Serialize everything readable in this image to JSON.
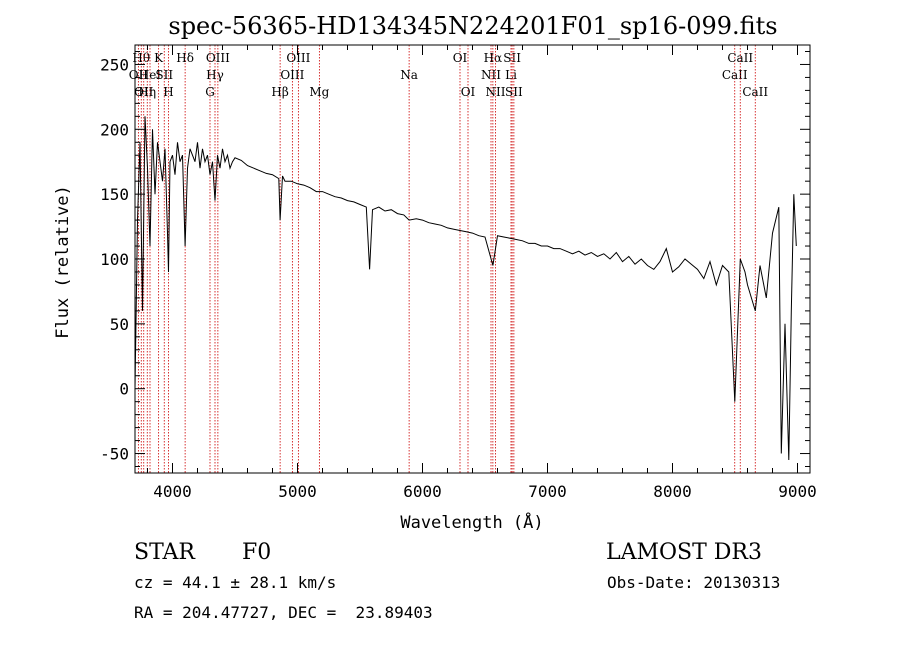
{
  "chart_data": {
    "type": "line",
    "title": "spec-56365-HD134345N224201F01_sp16-099.fits",
    "xlabel": "Wavelength (Å)",
    "ylabel": "Flux (relative)",
    "xlim": [
      3700,
      9100
    ],
    "ylim": [
      -65,
      265
    ],
    "xticks": [
      4000,
      5000,
      6000,
      7000,
      8000,
      9000
    ],
    "yticks": [
      -50,
      0,
      50,
      100,
      150,
      200,
      250
    ],
    "grid": false,
    "series": [
      {
        "name": "spectrum",
        "x": [
          3700,
          3720,
          3740,
          3760,
          3780,
          3800,
          3820,
          3840,
          3860,
          3880,
          3900,
          3920,
          3940,
          3960,
          3968,
          3980,
          4000,
          4020,
          4040,
          4060,
          4080,
          4101,
          4120,
          4140,
          4160,
          4180,
          4200,
          4220,
          4240,
          4260,
          4280,
          4300,
          4320,
          4340,
          4360,
          4380,
          4400,
          4420,
          4440,
          4460,
          4480,
          4500,
          4550,
          4600,
          4650,
          4700,
          4750,
          4800,
          4850,
          4861,
          4880,
          4900,
          4950,
          5000,
          5050,
          5100,
          5150,
          5200,
          5250,
          5300,
          5350,
          5400,
          5450,
          5500,
          5550,
          5577,
          5600,
          5650,
          5700,
          5750,
          5800,
          5850,
          5893,
          5950,
          6000,
          6050,
          6100,
          6150,
          6200,
          6250,
          6300,
          6350,
          6400,
          6450,
          6500,
          6563,
          6600,
          6650,
          6700,
          6750,
          6800,
          6850,
          6900,
          6950,
          7000,
          7050,
          7100,
          7150,
          7200,
          7250,
          7300,
          7350,
          7400,
          7450,
          7500,
          7550,
          7600,
          7650,
          7700,
          7750,
          7800,
          7850,
          7900,
          7950,
          8000,
          8050,
          8100,
          8150,
          8200,
          8250,
          8300,
          8350,
          8400,
          8450,
          8498,
          8542,
          8580,
          8600,
          8662,
          8700,
          8750,
          8800,
          8850,
          8870,
          8900,
          8930,
          8950,
          8970,
          8990
        ],
        "values": [
          0,
          130,
          190,
          60,
          210,
          170,
          110,
          200,
          150,
          190,
          175,
          160,
          185,
          120,
          90,
          175,
          180,
          165,
          190,
          175,
          180,
          110,
          170,
          185,
          180,
          175,
          190,
          170,
          185,
          175,
          180,
          165,
          175,
          145,
          180,
          170,
          185,
          175,
          180,
          170,
          175,
          178,
          176,
          172,
          170,
          168,
          166,
          165,
          162,
          130,
          164,
          160,
          160,
          158,
          157,
          155,
          152,
          152,
          150,
          148,
          147,
          145,
          144,
          142,
          140,
          92,
          138,
          140,
          137,
          138,
          135,
          134,
          130,
          131,
          130,
          128,
          127,
          126,
          124,
          123,
          122,
          121,
          120,
          118,
          117,
          95,
          118,
          117,
          116,
          115,
          114,
          112,
          112,
          110,
          110,
          108,
          108,
          106,
          104,
          106,
          103,
          105,
          102,
          104,
          100,
          105,
          98,
          102,
          96,
          100,
          95,
          92,
          98,
          108,
          90,
          94,
          100,
          96,
          92,
          85,
          98,
          80,
          95,
          90,
          -10,
          100,
          90,
          80,
          60,
          95,
          70,
          120,
          140,
          -50,
          50,
          -55,
          60,
          150,
          110
        ]
      }
    ],
    "line_markers": [
      {
        "wavelength": 3727,
        "label": "OII",
        "row": 2
      },
      {
        "wavelength": 3750,
        "label": "Hθ",
        "row": 1
      },
      {
        "wavelength": 3770,
        "label": "OII",
        "row": 3
      },
      {
        "wavelength": 3798,
        "label": "Hη",
        "row": 3
      },
      {
        "wavelength": 3820,
        "label": "HeI",
        "row": 2
      },
      {
        "wavelength": 3889,
        "label": "K",
        "row": 1
      },
      {
        "wavelength": 3934,
        "label": "SII",
        "row": 2
      },
      {
        "wavelength": 3968,
        "label": "H",
        "row": 3
      },
      {
        "wavelength": 4101,
        "label": "Hδ",
        "row": 1
      },
      {
        "wavelength": 4300,
        "label": "G",
        "row": 3
      },
      {
        "wavelength": 4340,
        "label": "Hγ",
        "row": 2
      },
      {
        "wavelength": 4363,
        "label": "OIII",
        "row": 1
      },
      {
        "wavelength": 4861,
        "label": "Hβ",
        "row": 3
      },
      {
        "wavelength": 4959,
        "label": "OIII",
        "row": 2
      },
      {
        "wavelength": 5007,
        "label": "OIII",
        "row": 1
      },
      {
        "wavelength": 5175,
        "label": "Mg",
        "row": 3
      },
      {
        "wavelength": 5893,
        "label": "Na",
        "row": 2
      },
      {
        "wavelength": 6300,
        "label": "OI",
        "row": 1
      },
      {
        "wavelength": 6364,
        "label": "OI",
        "row": 3
      },
      {
        "wavelength": 6548,
        "label": "NII",
        "row": 2
      },
      {
        "wavelength": 6563,
        "label": "Hα",
        "row": 1
      },
      {
        "wavelength": 6584,
        "label": "NII",
        "row": 3
      },
      {
        "wavelength": 6708,
        "label": "Li",
        "row": 2
      },
      {
        "wavelength": 6717,
        "label": "SII",
        "row": 1
      },
      {
        "wavelength": 6731,
        "label": "SII",
        "row": 3
      },
      {
        "wavelength": 8498,
        "label": "CaII",
        "row": 2
      },
      {
        "wavelength": 8542,
        "label": "CaII",
        "row": 1
      },
      {
        "wavelength": 8662,
        "label": "CaII",
        "row": 3
      }
    ],
    "colors": {
      "spectrum": "#000000",
      "markers": "#cc0000",
      "axes": "#000000"
    }
  },
  "info": {
    "object_class": "STAR",
    "subclass": "F0",
    "survey": "LAMOST DR3",
    "velocity": "cz = 44.1 ± 28.1 km/s",
    "obs_date": "Obs-Date: 20130313",
    "coords": "RA = 204.47727, DEC =  23.89403"
  }
}
